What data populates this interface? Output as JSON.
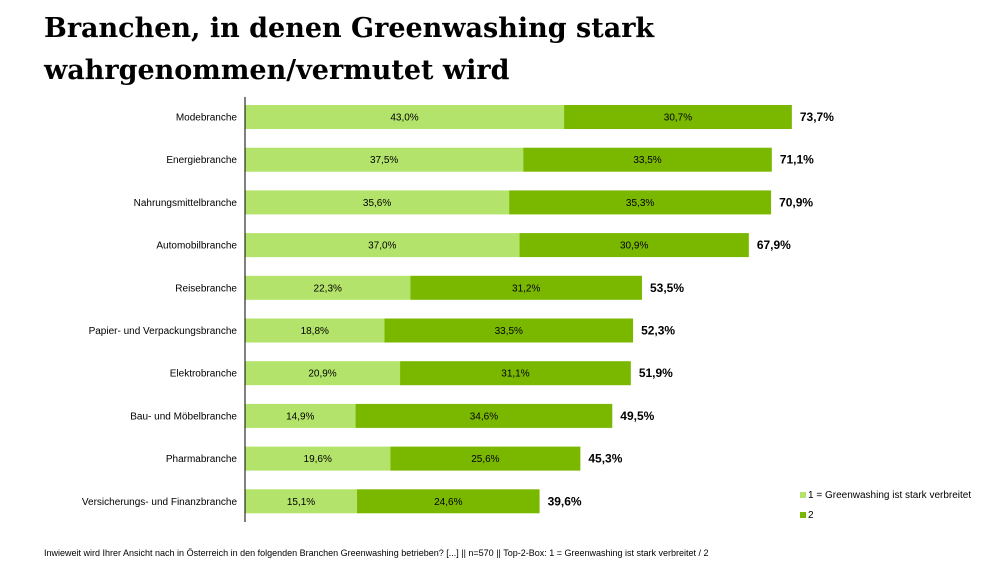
{
  "title": "Branchen, in denen Greenwashing stark wahrgenommen/vermutet wird",
  "footnote": "Inwieweit wird Ihrer Ansicht nach in Österreich in den folgenden Branchen Greenwashing betrieben?  [...] || n=570 ||  Top-2-Box: 1 = Greenwashing ist stark verbreitet / 2",
  "colors": {
    "series1": "#b3e36a",
    "series2": "#7ab800",
    "axis": "#000000"
  },
  "chart_data": {
    "type": "bar",
    "orientation": "horizontal",
    "stacked": true,
    "categories": [
      "Modebranche",
      "Energiebranche",
      "Nahrungsmittelbranche",
      "Automobilbranche",
      "Reisebranche",
      "Papier- und Verpackungsbranche",
      "Elektrobranche",
      "Bau- und Möbelbranche",
      "Pharmabranche",
      "Versicherungs- und Finanzbranche"
    ],
    "series": [
      {
        "name": "1 = Greenwashing ist stark verbreitet",
        "values": [
          43.0,
          37.5,
          35.6,
          37.0,
          22.3,
          18.8,
          20.9,
          14.9,
          19.6,
          15.1
        ],
        "labels": [
          "43,0%",
          "37,5%",
          "35,6%",
          "37,0%",
          "22,3%",
          "18,8%",
          "20,9%",
          "14,9%",
          "19,6%",
          "15,1%"
        ]
      },
      {
        "name": "2",
        "values": [
          30.7,
          33.5,
          35.3,
          30.9,
          31.2,
          33.5,
          31.1,
          34.6,
          25.6,
          24.6
        ],
        "labels": [
          "30,7%",
          "33,5%",
          "35,3%",
          "30,9%",
          "31,2%",
          "33,5%",
          "31,1%",
          "34,6%",
          "25,6%",
          "24,6%"
        ]
      }
    ],
    "totals": [
      73.7,
      71.1,
      70.9,
      67.9,
      53.5,
      52.3,
      51.9,
      49.5,
      45.3,
      39.6
    ],
    "total_labels": [
      "73,7%",
      "71,1%",
      "70,9%",
      "67,9%",
      "53,5%",
      "52,3%",
      "51,9%",
      "49,5%",
      "45,3%",
      "39,6%"
    ],
    "legend_position": "bottom-right",
    "grid": false
  }
}
